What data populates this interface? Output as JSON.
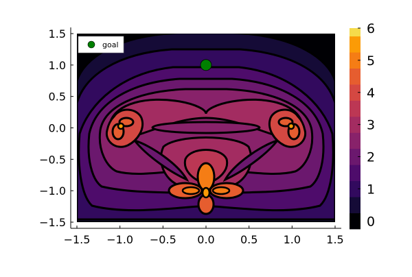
{
  "chart_data": {
    "type": "heatmap",
    "subtype": "filled-contour",
    "title": "",
    "xlabel": "",
    "ylabel": "",
    "xlim": [
      -1.55,
      1.58
    ],
    "ylim": [
      -1.58,
      1.58
    ],
    "x_ticks": [
      -1.5,
      -1.0,
      -0.5,
      0.0,
      0.5,
      1.0,
      1.5
    ],
    "x_tick_labels": [
      "−1.5",
      "−1.0",
      "−0.5",
      "0.0",
      "0.5",
      "1.0",
      "1.5"
    ],
    "y_ticks": [
      -1.5,
      -1.0,
      -0.5,
      0.0,
      0.5,
      1.0,
      1.5
    ],
    "y_tick_labels": [
      "−1.5",
      "−1.0",
      "−0.5",
      "0.0",
      "0.5",
      "1.0",
      "1.5"
    ],
    "grid": false,
    "colorbar": {
      "min": -0.25,
      "max": 6.0,
      "ticks": [
        0,
        1,
        2,
        3,
        4,
        5,
        6
      ],
      "tick_labels": [
        "0",
        "1",
        "2",
        "3",
        "4",
        "5",
        "6"
      ],
      "levels": [
        -0.25,
        0.25,
        0.75,
        1.25,
        1.75,
        2.25,
        2.75,
        3.25,
        3.75,
        4.25,
        4.75,
        5.25,
        5.75,
        6.0
      ],
      "colors": [
        "#000004",
        "#150b37",
        "#320a5e",
        "#4e0c6b",
        "#6b186e",
        "#88226a",
        "#a32c61",
        "#bc3754",
        "#d44842",
        "#e65d2f",
        "#f57d15",
        "#fb9b06",
        "#f5db4b",
        "#fcffa4"
      ]
    },
    "field": {
      "background_level": 0.0,
      "peaks": [
        {
          "x": -1.0,
          "y": 0.0,
          "value": 4.5
        },
        {
          "x": 1.0,
          "y": 0.0,
          "value": 4.5
        },
        {
          "x": 0.0,
          "y": -1.0,
          "value": 5.0
        },
        {
          "x": 0.0,
          "y": -0.75,
          "value": 4.5
        }
      ]
    },
    "goal": {
      "x": 0.0,
      "y": 1.0,
      "color": "#008000"
    },
    "legend": {
      "entries": [
        {
          "label": "goal",
          "color": "#008000",
          "marker": "circle"
        }
      ],
      "position": "top-left"
    }
  }
}
